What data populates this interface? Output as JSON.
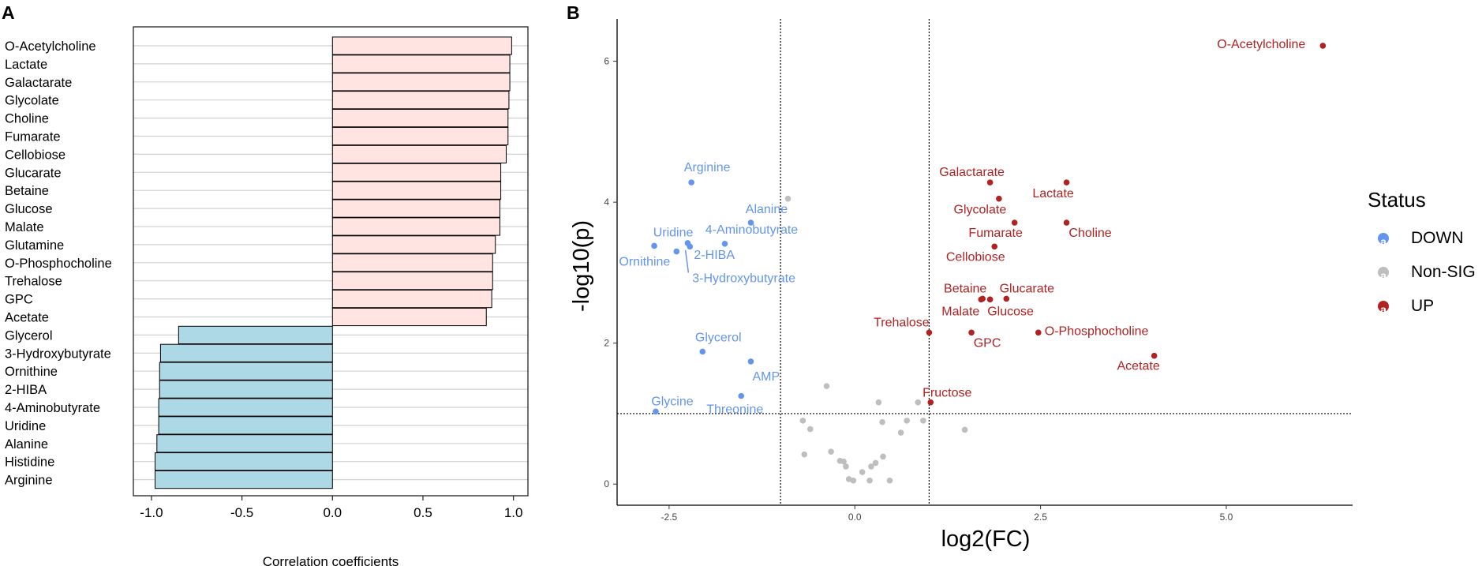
{
  "panels": {
    "a_label": "A",
    "b_label": "B"
  },
  "chart_data": [
    {
      "type": "bar",
      "orientation": "horizontal",
      "xlabel": "Correlation coefficients",
      "xlim": [
        -1.1,
        1.08
      ],
      "xticks": [
        -1.0,
        -0.5,
        0.0,
        0.5,
        1.0
      ],
      "xtick_labels": [
        "-1.0",
        "-0.5",
        "0.0",
        "0.5",
        "1.0"
      ],
      "positive_color": "#FFE4E1",
      "negative_color": "#ADD8E6",
      "categories": [
        "O-Acetylcholine",
        "Lactate",
        "Galactarate",
        "Glycolate",
        "Choline",
        "Fumarate",
        "Cellobiose",
        "Glucarate",
        "Betaine",
        "Glucose",
        "Malate",
        "Glutamine",
        "O-Phosphocholine",
        "Trehalose",
        "GPC",
        "Acetate",
        "Glycerol",
        "3-Hydroxybutyrate",
        "Ornithine",
        "2-HIBA",
        "4-Aminobutyrate",
        "Uridine",
        "Alanine",
        "Histidine",
        "Arginine"
      ],
      "values": [
        0.99,
        0.98,
        0.98,
        0.975,
        0.97,
        0.97,
        0.96,
        0.93,
        0.93,
        0.925,
        0.925,
        0.9,
        0.885,
        0.885,
        0.88,
        0.85,
        -0.85,
        -0.95,
        -0.955,
        -0.955,
        -0.96,
        -0.96,
        -0.97,
        -0.98,
        -0.98
      ]
    },
    {
      "type": "scatter",
      "subtype": "volcano",
      "xlabel": "log2(FC)",
      "ylabel": "-log10(p)",
      "xlim": [
        -3.2,
        6.7
      ],
      "ylim": [
        -0.3,
        6.6
      ],
      "xticks": [
        -2.5,
        0.0,
        2.5,
        5.0
      ],
      "xtick_labels": [
        "-2.5",
        "0.0",
        "2.5",
        "5.0"
      ],
      "yticks": [
        0,
        2,
        4,
        6
      ],
      "ytick_labels": [
        "0",
        "2",
        "4",
        "6"
      ],
      "vlines": [
        -1,
        1
      ],
      "hline": 1,
      "legend": {
        "title": "Status",
        "items": [
          {
            "label": "DOWN",
            "color": "#6495ED",
            "glyph": "a"
          },
          {
            "label": "Non-SIG",
            "color": "#BEBEBE",
            "glyph": "a"
          },
          {
            "label": "UP",
            "color": "#B22222",
            "glyph": "a"
          }
        ]
      },
      "series": [
        {
          "name": "DOWN",
          "color": "#6495ED",
          "points": [
            {
              "label": "Arginine",
              "x": -2.2,
              "y": 4.28
            },
            {
              "label": "Alanine",
              "x": -1.4,
              "y": 3.71
            },
            {
              "label": "Uridine",
              "x": -2.7,
              "y": 3.38
            },
            {
              "label": "4-Aminobutyrate",
              "x": -1.75,
              "y": 3.41
            },
            {
              "label": "Ornithine",
              "x": -2.4,
              "y": 3.3
            },
            {
              "label": "2-HIBA",
              "x": -2.25,
              "y": 3.42
            },
            {
              "label": "3-Hydroxybutyrate",
              "x": -2.22,
              "y": 3.37
            },
            {
              "label": "Glycerol",
              "x": -2.05,
              "y": 1.88
            },
            {
              "label": "AMP",
              "x": -1.4,
              "y": 1.74
            },
            {
              "label": "Glycine",
              "x": -2.68,
              "y": 1.03
            },
            {
              "label": "Threonine",
              "x": -1.53,
              "y": 1.25
            }
          ]
        },
        {
          "name": "Non-SIG",
          "color": "#BEBEBE",
          "points": [
            {
              "x": -0.9,
              "y": 4.05
            },
            {
              "x": -0.38,
              "y": 1.39
            },
            {
              "x": 0.32,
              "y": 1.16
            },
            {
              "x": 0.85,
              "y": 1.16
            },
            {
              "x": 1.48,
              "y": 0.77
            },
            {
              "x": -0.7,
              "y": 0.9
            },
            {
              "x": -0.6,
              "y": 0.78
            },
            {
              "x": -0.68,
              "y": 0.42
            },
            {
              "x": -0.32,
              "y": 0.46
            },
            {
              "x": -0.2,
              "y": 0.33
            },
            {
              "x": -0.15,
              "y": 0.32
            },
            {
              "x": -0.12,
              "y": 0.25
            },
            {
              "x": -0.08,
              "y": 0.07
            },
            {
              "x": -0.02,
              "y": 0.05
            },
            {
              "x": 0.1,
              "y": 0.17
            },
            {
              "x": 0.2,
              "y": 0.05
            },
            {
              "x": 0.22,
              "y": 0.25
            },
            {
              "x": 0.28,
              "y": 0.3
            },
            {
              "x": 0.38,
              "y": 0.39
            },
            {
              "x": 0.47,
              "y": 0.05
            },
            {
              "x": 0.37,
              "y": 0.88
            },
            {
              "x": 0.62,
              "y": 0.73
            },
            {
              "x": 0.7,
              "y": 0.9
            },
            {
              "x": 0.92,
              "y": 0.9
            }
          ]
        },
        {
          "name": "UP",
          "color": "#B22222",
          "points": [
            {
              "label": "O-Acetylcholine",
              "x": 6.3,
              "y": 6.22
            },
            {
              "label": "Galactarate",
              "x": 1.82,
              "y": 4.28
            },
            {
              "label": "Lactate",
              "x": 2.85,
              "y": 4.28
            },
            {
              "label": "Glycolate",
              "x": 1.94,
              "y": 4.05
            },
            {
              "label": "Fumarate",
              "x": 2.15,
              "y": 3.71
            },
            {
              "label": "Choline",
              "x": 2.85,
              "y": 3.71
            },
            {
              "label": "Cellobiose",
              "x": 1.88,
              "y": 3.37
            },
            {
              "label": "Betaine",
              "x": 1.72,
              "y": 2.63
            },
            {
              "label": "Glucarate",
              "x": 2.04,
              "y": 2.63
            },
            {
              "label": "Malate",
              "x": 1.7,
              "y": 2.62
            },
            {
              "label": "Glucose",
              "x": 1.82,
              "y": 2.62
            },
            {
              "label": "Trehalose",
              "x": 1.0,
              "y": 2.15
            },
            {
              "label": "GPC",
              "x": 1.57,
              "y": 2.15
            },
            {
              "label": "O-Phosphocholine",
              "x": 2.47,
              "y": 2.15
            },
            {
              "label": "Acetate",
              "x": 4.03,
              "y": 1.82
            },
            {
              "label": "Fructose",
              "x": 1.02,
              "y": 1.16
            }
          ]
        }
      ]
    }
  ]
}
